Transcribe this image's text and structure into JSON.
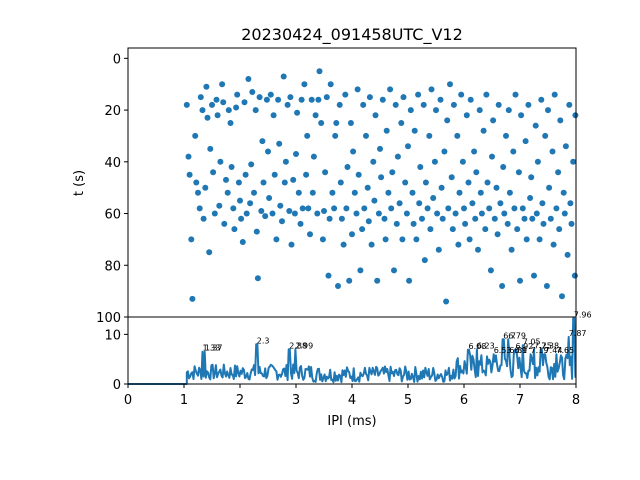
{
  "chart_data": [
    {
      "type": "scatter",
      "title": "20230424_091458UTC_V12",
      "ylabel": "t (s)",
      "xlim": [
        0,
        8
      ],
      "ylim": [
        100,
        -4
      ],
      "y_inverted": true,
      "yticks": [
        "0",
        "20",
        "40",
        "60",
        "80",
        "100"
      ],
      "color": "#1f77b4",
      "points": [
        [
          1.05,
          18
        ],
        [
          1.08,
          38
        ],
        [
          1.1,
          45
        ],
        [
          1.13,
          70
        ],
        [
          1.15,
          93
        ],
        [
          1.2,
          30
        ],
        [
          1.22,
          48
        ],
        [
          1.25,
          52
        ],
        [
          1.28,
          58
        ],
        [
          1.3,
          15
        ],
        [
          1.33,
          20
        ],
        [
          1.35,
          62
        ],
        [
          1.38,
          50
        ],
        [
          1.4,
          11
        ],
        [
          1.42,
          23
        ],
        [
          1.45,
          75
        ],
        [
          1.47,
          35
        ],
        [
          1.5,
          18
        ],
        [
          1.52,
          44
        ],
        [
          1.55,
          60
        ],
        [
          1.58,
          16
        ],
        [
          1.6,
          22
        ],
        [
          1.63,
          57
        ],
        [
          1.65,
          40
        ],
        [
          1.68,
          10
        ],
        [
          1.7,
          17
        ],
        [
          1.72,
          64
        ],
        [
          1.75,
          47
        ],
        [
          1.78,
          52
        ],
        [
          1.8,
          20
        ],
        [
          1.83,
          25
        ],
        [
          1.85,
          42
        ],
        [
          1.88,
          58
        ],
        [
          1.9,
          66
        ],
        [
          1.93,
          19
        ],
        [
          1.95,
          14
        ],
        [
          1.98,
          48
        ],
        [
          2.0,
          55
        ],
        [
          2.02,
          62
        ],
        [
          2.05,
          71
        ],
        [
          2.08,
          17
        ],
        [
          2.1,
          45
        ],
        [
          2.12,
          60
        ],
        [
          2.15,
          8
        ],
        [
          2.18,
          56
        ],
        [
          2.2,
          41
        ],
        [
          2.22,
          13
        ],
        [
          2.25,
          52
        ],
        [
          2.28,
          20
        ],
        [
          2.3,
          67
        ],
        [
          2.32,
          85
        ],
        [
          2.35,
          15
        ],
        [
          2.38,
          59
        ],
        [
          2.4,
          32
        ],
        [
          2.42,
          48
        ],
        [
          2.45,
          61
        ],
        [
          2.48,
          16
        ],
        [
          2.5,
          36
        ],
        [
          2.52,
          54
        ],
        [
          2.55,
          14
        ],
        [
          2.58,
          60
        ],
        [
          2.6,
          22
        ],
        [
          2.62,
          45
        ],
        [
          2.65,
          70
        ],
        [
          2.68,
          16
        ],
        [
          2.7,
          33
        ],
        [
          2.72,
          57
        ],
        [
          2.75,
          63
        ],
        [
          2.78,
          7
        ],
        [
          2.8,
          48
        ],
        [
          2.82,
          40
        ],
        [
          2.85,
          18
        ],
        [
          2.88,
          59
        ],
        [
          2.9,
          15
        ],
        [
          2.92,
          72
        ],
        [
          2.95,
          47
        ],
        [
          2.98,
          60
        ],
        [
          3.0,
          37
        ],
        [
          3.02,
          21
        ],
        [
          3.05,
          52
        ],
        [
          3.08,
          64
        ],
        [
          3.1,
          16
        ],
        [
          3.12,
          58
        ],
        [
          3.15,
          10
        ],
        [
          3.18,
          45
        ],
        [
          3.2,
          30
        ],
        [
          3.22,
          58
        ],
        [
          3.25,
          68
        ],
        [
          3.28,
          16
        ],
        [
          3.3,
          52
        ],
        [
          3.32,
          38
        ],
        [
          3.35,
          22
        ],
        [
          3.38,
          60
        ],
        [
          3.4,
          16
        ],
        [
          3.42,
          5
        ],
        [
          3.45,
          25
        ],
        [
          3.48,
          70
        ],
        [
          3.5,
          59
        ],
        [
          3.52,
          44
        ],
        [
          3.55,
          15
        ],
        [
          3.58,
          84
        ],
        [
          3.6,
          62
        ],
        [
          3.62,
          10
        ],
        [
          3.65,
          52
        ],
        [
          3.68,
          58
        ],
        [
          3.7,
          30
        ],
        [
          3.72,
          25
        ],
        [
          3.75,
          88
        ],
        [
          3.78,
          18
        ],
        [
          3.8,
          48
        ],
        [
          3.82,
          62
        ],
        [
          3.85,
          72
        ],
        [
          3.88,
          14
        ],
        [
          3.9,
          58
        ],
        [
          3.92,
          42
        ],
        [
          3.95,
          86
        ],
        [
          3.98,
          25
        ],
        [
          4.0,
          68
        ],
        [
          4.02,
          36
        ],
        [
          4.05,
          52
        ],
        [
          4.08,
          60
        ],
        [
          4.1,
          12
        ],
        [
          4.12,
          45
        ],
        [
          4.15,
          82
        ],
        [
          4.18,
          66
        ],
        [
          4.2,
          18
        ],
        [
          4.22,
          58
        ],
        [
          4.25,
          30
        ],
        [
          4.28,
          50
        ],
        [
          4.3,
          63
        ],
        [
          4.32,
          15
        ],
        [
          4.35,
          72
        ],
        [
          4.38,
          40
        ],
        [
          4.4,
          55
        ],
        [
          4.42,
          22
        ],
        [
          4.45,
          86
        ],
        [
          4.48,
          60
        ],
        [
          4.5,
          35
        ],
        [
          4.52,
          46
        ],
        [
          4.55,
          16
        ],
        [
          4.58,
          62
        ],
        [
          4.6,
          70
        ],
        [
          4.62,
          28
        ],
        [
          4.65,
          52
        ],
        [
          4.68,
          12
        ],
        [
          4.7,
          58
        ],
        [
          4.72,
          44
        ],
        [
          4.75,
          82
        ],
        [
          4.78,
          18
        ],
        [
          4.8,
          64
        ],
        [
          4.82,
          38
        ],
        [
          4.85,
          56
        ],
        [
          4.88,
          25
        ],
        [
          4.9,
          70
        ],
        [
          4.92,
          15
        ],
        [
          4.95,
          48
        ],
        [
          4.98,
          60
        ],
        [
          5.0,
          34
        ],
        [
          5.02,
          86
        ],
        [
          5.05,
          20
        ],
        [
          5.08,
          52
        ],
        [
          5.1,
          64
        ],
        [
          5.12,
          28
        ],
        [
          5.15,
          70
        ],
        [
          5.18,
          14
        ],
        [
          5.2,
          56
        ],
        [
          5.22,
          42
        ],
        [
          5.25,
          62
        ],
        [
          5.28,
          18
        ],
        [
          5.3,
          78
        ],
        [
          5.32,
          48
        ],
        [
          5.35,
          58
        ],
        [
          5.38,
          30
        ],
        [
          5.4,
          66
        ],
        [
          5.42,
          12
        ],
        [
          5.45,
          54
        ],
        [
          5.48,
          40
        ],
        [
          5.5,
          20
        ],
        [
          5.52,
          60
        ],
        [
          5.55,
          74
        ],
        [
          5.58,
          16
        ],
        [
          5.6,
          50
        ],
        [
          5.62,
          62
        ],
        [
          5.65,
          36
        ],
        [
          5.68,
          94
        ],
        [
          5.7,
          24
        ],
        [
          5.72,
          58
        ],
        [
          5.75,
          10
        ],
        [
          5.78,
          46
        ],
        [
          5.8,
          66
        ],
        [
          5.82,
          18
        ],
        [
          5.85,
          60
        ],
        [
          5.88,
          30
        ],
        [
          5.9,
          72
        ],
        [
          5.92,
          52
        ],
        [
          5.95,
          14
        ],
        [
          5.98,
          40
        ],
        [
          6.0,
          58
        ],
        [
          6.02,
          64
        ],
        [
          6.05,
          22
        ],
        [
          6.08,
          48
        ],
        [
          6.1,
          70
        ],
        [
          6.12,
          16
        ],
        [
          6.15,
          56
        ],
        [
          6.18,
          36
        ],
        [
          6.2,
          62
        ],
        [
          6.22,
          44
        ],
        [
          6.25,
          74
        ],
        [
          6.28,
          20
        ],
        [
          6.3,
          52
        ],
        [
          6.32,
          60
        ],
        [
          6.35,
          28
        ],
        [
          6.38,
          66
        ],
        [
          6.4,
          14
        ],
        [
          6.42,
          48
        ],
        [
          6.45,
          58
        ],
        [
          6.48,
          82
        ],
        [
          6.5,
          38
        ],
        [
          6.52,
          24
        ],
        [
          6.55,
          62
        ],
        [
          6.58,
          50
        ],
        [
          6.6,
          68
        ],
        [
          6.62,
          18
        ],
        [
          6.65,
          56
        ],
        [
          6.68,
          88
        ],
        [
          6.7,
          42
        ],
        [
          6.72,
          60
        ],
        [
          6.75,
          30
        ],
        [
          6.78,
          64
        ],
        [
          6.8,
          20
        ],
        [
          6.82,
          52
        ],
        [
          6.85,
          74
        ],
        [
          6.88,
          36
        ],
        [
          6.9,
          58
        ],
        [
          6.92,
          14
        ],
        [
          6.95,
          66
        ],
        [
          6.98,
          44
        ],
        [
          7.0,
          86
        ],
        [
          7.02,
          22
        ],
        [
          7.05,
          58
        ],
        [
          7.08,
          62
        ],
        [
          7.1,
          32
        ],
        [
          7.12,
          70
        ],
        [
          7.15,
          18
        ],
        [
          7.18,
          54
        ],
        [
          7.2,
          46
        ],
        [
          7.22,
          62
        ],
        [
          7.25,
          84
        ],
        [
          7.28,
          26
        ],
        [
          7.3,
          60
        ],
        [
          7.32,
          40
        ],
        [
          7.35,
          70
        ],
        [
          7.38,
          16
        ],
        [
          7.4,
          56
        ],
        [
          7.42,
          64
        ],
        [
          7.45,
          30
        ],
        [
          7.48,
          88
        ],
        [
          7.5,
          20
        ],
        [
          7.52,
          50
        ],
        [
          7.55,
          62
        ],
        [
          7.58,
          36
        ],
        [
          7.6,
          72
        ],
        [
          7.62,
          14
        ],
        [
          7.65,
          58
        ],
        [
          7.68,
          44
        ],
        [
          7.7,
          66
        ],
        [
          7.72,
          24
        ],
        [
          7.75,
          92
        ],
        [
          7.78,
          52
        ],
        [
          7.8,
          60
        ],
        [
          7.82,
          34
        ],
        [
          7.85,
          76
        ],
        [
          7.88,
          18
        ],
        [
          7.9,
          56
        ],
        [
          7.92,
          64
        ],
        [
          7.95,
          40
        ],
        [
          7.98,
          84
        ],
        [
          7.99,
          22
        ]
      ]
    },
    {
      "type": "line",
      "xlabel": "IPI (ms)",
      "xlim": [
        0,
        8
      ],
      "ylim": [
        0,
        13.5
      ],
      "xticks": [
        "0",
        "1",
        "2",
        "3",
        "4",
        "5",
        "6",
        "7",
        "8"
      ],
      "yticks": [
        "0",
        "10"
      ],
      "color": "#1f77b4",
      "peak_labels": [
        {
          "x": 1.33,
          "y": 6.5,
          "text": "1.33"
        },
        {
          "x": 1.37,
          "y": 6.5,
          "text": "1.37"
        },
        {
          "x": 2.3,
          "y": 8.0,
          "text": "2.3"
        },
        {
          "x": 2.88,
          "y": 7.0,
          "text": "2.88"
        },
        {
          "x": 2.99,
          "y": 7.0,
          "text": "2.99"
        },
        {
          "x": 6.08,
          "y": 6.9,
          "text": "6.08"
        },
        {
          "x": 6.23,
          "y": 7.0,
          "text": "6.23"
        },
        {
          "x": 6.53,
          "y": 6.0,
          "text": "6.53"
        },
        {
          "x": 6.7,
          "y": 9.0,
          "text": "6.7"
        },
        {
          "x": 6.79,
          "y": 9.0,
          "text": "6.79"
        },
        {
          "x": 6.81,
          "y": 6.0,
          "text": "6.81"
        },
        {
          "x": 6.9,
          "y": 6.0,
          "text": "6.9"
        },
        {
          "x": 6.92,
          "y": 6.9,
          "text": "6.92"
        },
        {
          "x": 7.05,
          "y": 7.8,
          "text": "7.05"
        },
        {
          "x": 7.19,
          "y": 6.0,
          "text": "7.19"
        },
        {
          "x": 7.25,
          "y": 7.0,
          "text": "7.25"
        },
        {
          "x": 7.38,
          "y": 7.0,
          "text": "7.38"
        },
        {
          "x": 7.44,
          "y": 6.0,
          "text": "7.44"
        },
        {
          "x": 7.65,
          "y": 6.0,
          "text": "7.65"
        },
        {
          "x": 7.87,
          "y": 9.5,
          "text": "7.87"
        },
        {
          "x": 7.96,
          "y": 13.2,
          "text": "7.96"
        }
      ]
    }
  ]
}
